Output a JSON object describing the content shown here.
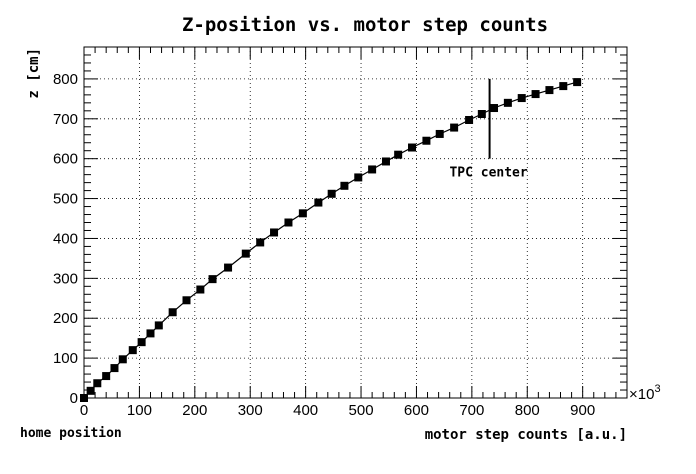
{
  "chart_data": {
    "type": "scatter",
    "title": "Z-position vs. motor step counts",
    "xlabel": "motor step counts [a.u.]",
    "ylabel": "z [cm]",
    "x_multiplier_label": "×10",
    "x_multiplier_exp": "3",
    "xlim": [
      0,
      980
    ],
    "ylim": [
      0,
      880
    ],
    "x_ticks": [
      0,
      100,
      200,
      300,
      400,
      500,
      600,
      700,
      800,
      900
    ],
    "y_ticks": [
      0,
      100,
      200,
      300,
      400,
      500,
      600,
      700,
      800
    ],
    "x_tick_labels": [
      "0",
      "100",
      "200",
      "300",
      "400",
      "500",
      "600",
      "700",
      "800",
      "900"
    ],
    "y_tick_labels": [
      "0",
      "100",
      "200",
      "300",
      "400",
      "500",
      "600",
      "700",
      "800"
    ],
    "grid": true,
    "marker": "square",
    "line": true,
    "series": [
      {
        "x": [
          0,
          12,
          24,
          40,
          55,
          70,
          88,
          104,
          120,
          135,
          160,
          185,
          210,
          232,
          260,
          292,
          318,
          343,
          369,
          395,
          423,
          447,
          470,
          495,
          520,
          545,
          567,
          592,
          618,
          642,
          668,
          695,
          718,
          740,
          765,
          790,
          815,
          840,
          865,
          890
        ],
        "y": [
          0,
          18,
          37,
          55,
          75,
          97,
          120,
          140,
          162,
          182,
          215,
          245,
          272,
          298,
          327,
          362,
          390,
          415,
          440,
          463,
          490,
          512,
          532,
          553,
          573,
          593,
          610,
          628,
          645,
          662,
          678,
          697,
          712,
          727,
          740,
          752,
          762,
          772,
          782,
          792
        ]
      }
    ],
    "annotations": {
      "home_label": "home position",
      "tpc_label": "TPC center",
      "tpc_x": 732,
      "tpc_y_range": [
        600,
        800
      ]
    }
  }
}
